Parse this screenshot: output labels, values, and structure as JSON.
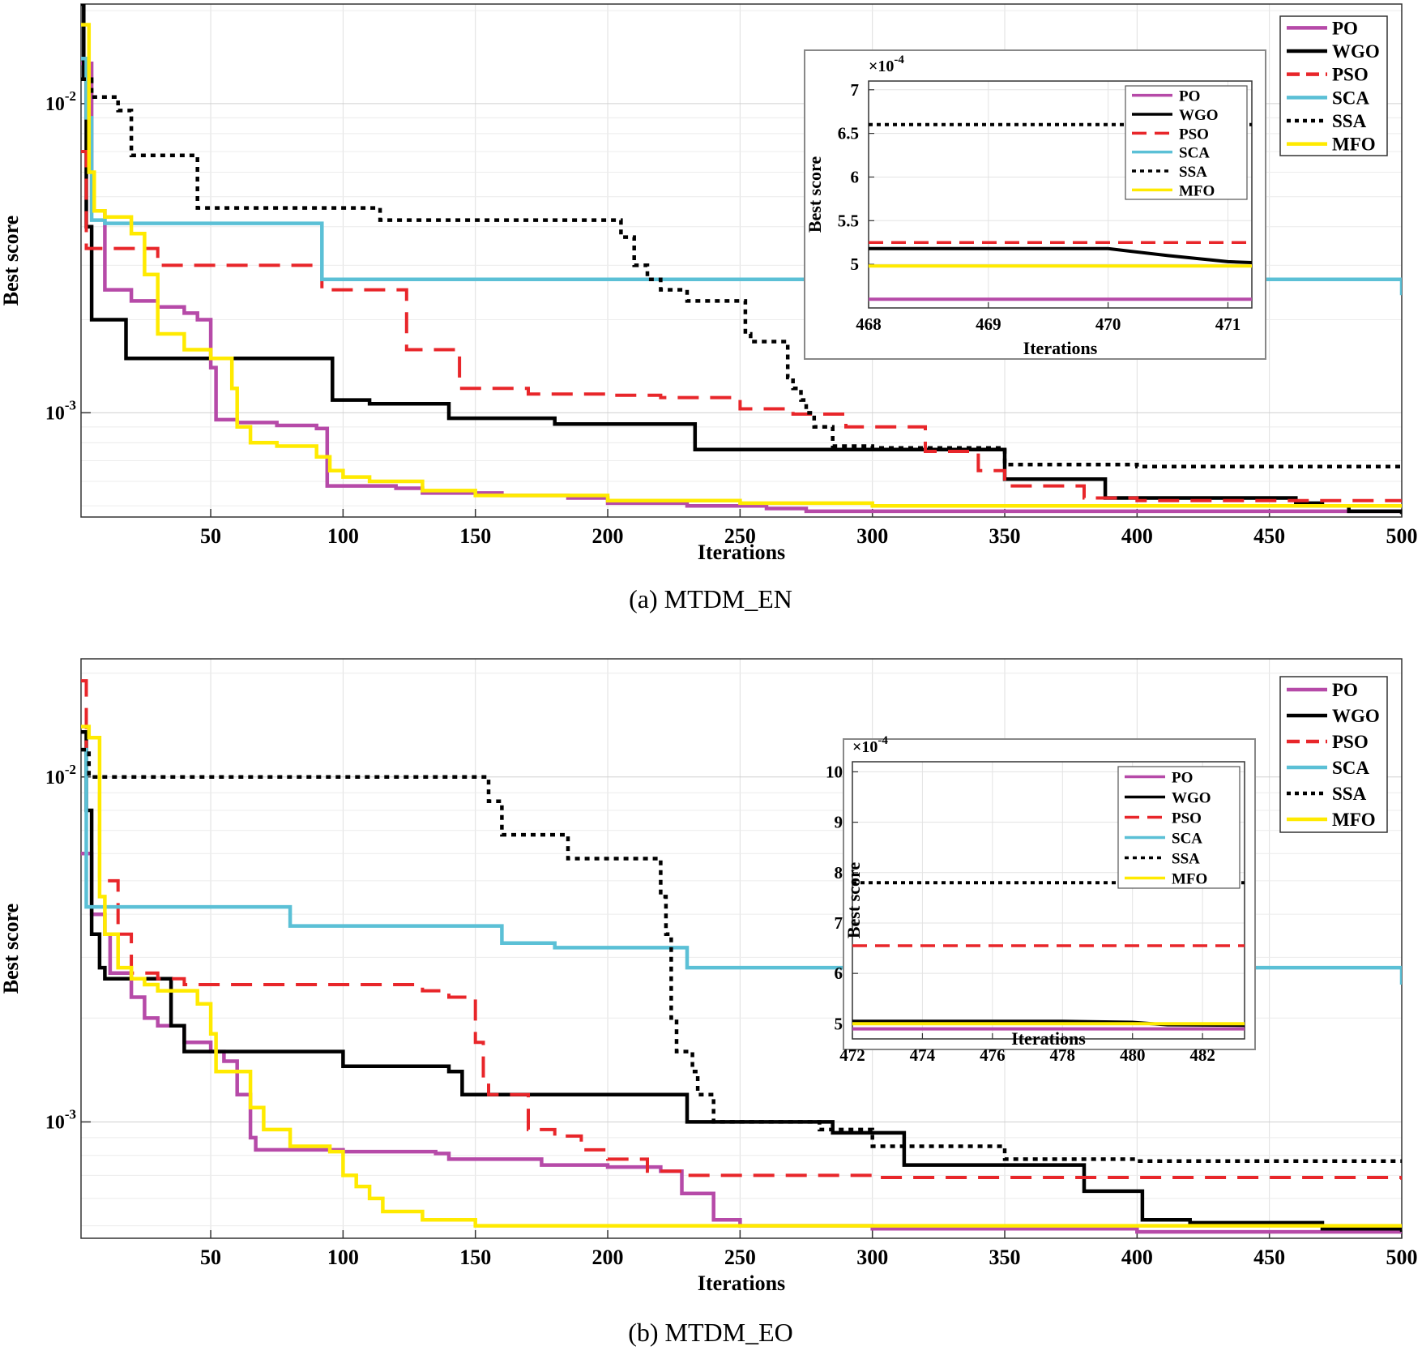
{
  "chart_data": [
    {
      "type": "line",
      "caption": "(a) MTDM_EN",
      "xlabel": "Iterations",
      "ylabel": "Best score",
      "yscale": "log",
      "xlim": [
        1,
        500
      ],
      "ylim": [
        0.00046,
        0.021
      ],
      "xticks": [
        50,
        100,
        150,
        200,
        250,
        300,
        350,
        400,
        450,
        500
      ],
      "yticks": [
        {
          "v": 0.001,
          "base": "10",
          "exp": "-3"
        },
        {
          "v": 0.01,
          "base": "10",
          "exp": "-2"
        }
      ],
      "grid": true,
      "legend_position": "top-right",
      "series": [
        {
          "name": "PO",
          "color": "#b64aa8",
          "style": "solid",
          "x": [
            1,
            5,
            10,
            20,
            30,
            40,
            45,
            50,
            52,
            55,
            60,
            75,
            90,
            94,
            110,
            120,
            130,
            140,
            160,
            185,
            200,
            230,
            260,
            275,
            300,
            350,
            400,
            450,
            500
          ],
          "y": [
            0.0135,
            0.0045,
            0.0025,
            0.0023,
            0.0022,
            0.0021,
            0.002,
            0.0014,
            0.00095,
            0.00095,
            0.00093,
            0.00091,
            0.00089,
            0.00058,
            0.00058,
            0.00057,
            0.00055,
            0.00055,
            0.00054,
            0.00053,
            0.00051,
            0.0005,
            0.00049,
            0.00048,
            0.00048,
            0.00048,
            0.00048,
            0.00048,
            0.00048
          ]
        },
        {
          "name": "WGO",
          "color": "#000000",
          "style": "solid",
          "x": [
            1,
            2,
            3,
            5,
            18,
            92,
            96,
            110,
            140,
            175,
            180,
            232,
            233,
            280,
            320,
            350,
            385,
            388,
            450,
            460,
            470,
            480,
            500
          ],
          "y": [
            0.021,
            0.012,
            0.004,
            0.002,
            0.0015,
            0.0015,
            0.0011,
            0.00107,
            0.00096,
            0.00096,
            0.00092,
            0.00092,
            0.00076,
            0.00076,
            0.00076,
            0.00061,
            0.00061,
            0.00053,
            0.00053,
            0.00051,
            0.0005,
            0.00048,
            0.00047
          ]
        },
        {
          "name": "PSO",
          "color": "#e8262a",
          "style": "dashed",
          "x": [
            1,
            3,
            5,
            30,
            90,
            92,
            122,
            124,
            142,
            144,
            166,
            170,
            200,
            220,
            250,
            270,
            290,
            320,
            340,
            350,
            380,
            400,
            450,
            500
          ],
          "y": [
            0.007,
            0.0034,
            0.0034,
            0.003,
            0.003,
            0.0025,
            0.0025,
            0.0016,
            0.0016,
            0.0012,
            0.0012,
            0.00115,
            0.00114,
            0.00112,
            0.00103,
            0.00099,
            0.0009,
            0.00075,
            0.00065,
            0.00058,
            0.00053,
            0.00052,
            0.00052,
            0.00052
          ]
        },
        {
          "name": "SCA",
          "color": "#5bc0d6",
          "style": "solid",
          "x": [
            1,
            3,
            5,
            10,
            90,
            92,
            200,
            300,
            500
          ],
          "y": [
            0.014,
            0.009,
            0.0042,
            0.0041,
            0.0041,
            0.0027,
            0.0027,
            0.0027,
            0.0024
          ]
        },
        {
          "name": "SSA",
          "color": "#000000",
          "style": "dotted",
          "x": [
            1,
            5,
            15,
            20,
            40,
            45,
            110,
            114,
            180,
            205,
            210,
            215,
            220,
            230,
            252,
            254,
            268,
            270,
            273,
            275,
            278,
            285,
            300,
            350,
            400,
            450,
            500
          ],
          "y": [
            0.012,
            0.0105,
            0.0095,
            0.0068,
            0.0068,
            0.0046,
            0.0046,
            0.0042,
            0.0042,
            0.0037,
            0.003,
            0.0027,
            0.0025,
            0.0023,
            0.0018,
            0.0017,
            0.0013,
            0.0012,
            0.0011,
            0.001,
            0.0009,
            0.00078,
            0.00077,
            0.00068,
            0.00067,
            0.00067,
            0.00066
          ]
        },
        {
          "name": "MFO",
          "color": "#ffea00",
          "style": "solid",
          "x": [
            1,
            4,
            6,
            10,
            20,
            25,
            30,
            40,
            50,
            55,
            58,
            60,
            65,
            75,
            90,
            95,
            100,
            110,
            130,
            150,
            200,
            250,
            300,
            400,
            500
          ],
          "y": [
            0.018,
            0.006,
            0.0045,
            0.0043,
            0.0038,
            0.0028,
            0.0018,
            0.0016,
            0.0015,
            0.0015,
            0.0012,
            0.0009,
            0.0008,
            0.00078,
            0.00072,
            0.00065,
            0.00062,
            0.0006,
            0.00056,
            0.00054,
            0.00052,
            0.00051,
            0.0005,
            0.0005,
            0.0005
          ]
        }
      ],
      "inset": {
        "xlabel": "Iterations",
        "ylabel": "Best score",
        "xlim": [
          468,
          471.2
        ],
        "ylim": [
          4.5,
          7.1
        ],
        "xticks": [
          "468",
          "469",
          "470",
          "471"
        ],
        "yticks": [
          "5",
          "5.5",
          "6",
          "6.5",
          "7"
        ],
        "scale_label": "×10",
        "scale_exp": "-4",
        "series": [
          {
            "name": "PO",
            "x": [
              468,
              471.2
            ],
            "y": [
              4.6,
              4.6
            ]
          },
          {
            "name": "WGO",
            "x": [
              468,
              470,
              470.5,
              471,
              471.2
            ],
            "y": [
              5.18,
              5.18,
              5.1,
              5.03,
              5.02
            ]
          },
          {
            "name": "PSO",
            "x": [
              468,
              471.2
            ],
            "y": [
              5.25,
              5.25
            ]
          },
          {
            "name": "SCA",
            "x": [],
            "y": []
          },
          {
            "name": "SSA",
            "x": [
              468,
              471.2
            ],
            "y": [
              6.6,
              6.6
            ]
          },
          {
            "name": "MFO",
            "x": [
              468,
              471.2
            ],
            "y": [
              4.98,
              4.98
            ]
          }
        ]
      }
    },
    {
      "type": "line",
      "caption": "(b) MTDM_EO",
      "xlabel": "Iterations",
      "ylabel": "Best score",
      "yscale": "log",
      "xlim": [
        1,
        500
      ],
      "ylim": [
        0.00046,
        0.022
      ],
      "xticks": [
        50,
        100,
        150,
        200,
        250,
        300,
        350,
        400,
        450,
        500
      ],
      "yticks": [
        {
          "v": 0.001,
          "base": "10",
          "exp": "-3"
        },
        {
          "v": 0.01,
          "base": "10",
          "exp": "-2"
        }
      ],
      "grid": true,
      "legend_position": "top-right",
      "series": [
        {
          "name": "PO",
          "color": "#b64aa8",
          "style": "solid",
          "x": [
            1,
            5,
            10,
            12,
            20,
            25,
            30,
            40,
            50,
            55,
            60,
            65,
            67,
            100,
            135,
            140,
            175,
            200,
            220,
            225,
            228,
            240,
            250,
            300,
            400,
            500
          ],
          "y": [
            0.006,
            0.004,
            0.0035,
            0.0027,
            0.0023,
            0.002,
            0.0019,
            0.0017,
            0.0016,
            0.0015,
            0.0012,
            0.0009,
            0.00083,
            0.00082,
            0.00081,
            0.00078,
            0.00075,
            0.00074,
            0.00072,
            0.00072,
            0.00062,
            0.00052,
            0.0005,
            0.00049,
            0.00048,
            0.00048
          ]
        },
        {
          "name": "WGO",
          "color": "#000000",
          "style": "solid",
          "x": [
            1,
            3,
            5,
            8,
            10,
            30,
            35,
            40,
            100,
            140,
            145,
            225,
            230,
            280,
            285,
            310,
            312,
            376,
            380,
            400,
            402,
            420,
            470,
            500
          ],
          "y": [
            0.0135,
            0.008,
            0.0035,
            0.0028,
            0.0026,
            0.0026,
            0.0019,
            0.0016,
            0.00145,
            0.0014,
            0.0012,
            0.0012,
            0.001,
            0.001,
            0.00093,
            0.00093,
            0.00075,
            0.00075,
            0.00063,
            0.00063,
            0.00052,
            0.00051,
            0.00049,
            0.00048
          ]
        },
        {
          "name": "PSO",
          "color": "#e8262a",
          "style": "dashed",
          "x": [
            1,
            3,
            8,
            15,
            20,
            30,
            40,
            130,
            140,
            150,
            153,
            155,
            165,
            170,
            180,
            190,
            200,
            215,
            230,
            300,
            400,
            500
          ],
          "y": [
            0.019,
            0.009,
            0.005,
            0.0035,
            0.0027,
            0.0026,
            0.0025,
            0.0024,
            0.0023,
            0.0017,
            0.0013,
            0.0012,
            0.0012,
            0.00095,
            0.00091,
            0.00083,
            0.00078,
            0.00072,
            0.0007,
            0.00069,
            0.00069,
            0.00068
          ]
        },
        {
          "name": "SCA",
          "color": "#5bc0d6",
          "style": "solid",
          "x": [
            1,
            3,
            5,
            75,
            80,
            155,
            160,
            175,
            180,
            225,
            230,
            280,
            500
          ],
          "y": [
            0.012,
            0.0042,
            0.0042,
            0.0042,
            0.0037,
            0.0037,
            0.0033,
            0.0033,
            0.0032,
            0.0032,
            0.0028,
            0.0028,
            0.0025
          ]
        },
        {
          "name": "SSA",
          "color": "#000000",
          "style": "dotted",
          "x": [
            1,
            4,
            10,
            150,
            155,
            160,
            180,
            185,
            215,
            220,
            222,
            224,
            226,
            232,
            234,
            240,
            250,
            280,
            300,
            350,
            400,
            450,
            500
          ],
          "y": [
            0.012,
            0.01,
            0.01,
            0.01,
            0.0085,
            0.0068,
            0.0068,
            0.0058,
            0.0058,
            0.0045,
            0.0035,
            0.002,
            0.0016,
            0.0014,
            0.0012,
            0.001,
            0.001,
            0.00095,
            0.00085,
            0.00078,
            0.00077,
            0.00077,
            0.00077
          ]
        },
        {
          "name": "MFO",
          "color": "#ffea00",
          "style": "solid",
          "x": [
            1,
            4,
            8,
            10,
            15,
            20,
            25,
            30,
            45,
            50,
            52,
            60,
            65,
            70,
            80,
            95,
            100,
            105,
            110,
            115,
            130,
            150,
            200,
            300,
            500
          ],
          "y": [
            0.014,
            0.013,
            0.0045,
            0.0035,
            0.0028,
            0.0026,
            0.0025,
            0.0024,
            0.0022,
            0.0018,
            0.0014,
            0.0014,
            0.0011,
            0.00095,
            0.00085,
            0.00082,
            0.0007,
            0.00065,
            0.0006,
            0.00055,
            0.00052,
            0.0005,
            0.0005,
            0.0005,
            0.0005
          ]
        }
      ],
      "inset": {
        "xlabel": "Iterations",
        "ylabel": "Best score",
        "xlim": [
          472,
          483.2
        ],
        "ylim": [
          4.7,
          10.2
        ],
        "xticks": [
          "472",
          "474",
          "476",
          "478",
          "480",
          "482"
        ],
        "yticks": [
          "5",
          "6",
          "7",
          "8",
          "9",
          "10"
        ],
        "scale_label": "×10",
        "scale_exp": "-4",
        "series": [
          {
            "name": "PO",
            "x": [
              472,
              483.2
            ],
            "y": [
              4.9,
              4.9
            ]
          },
          {
            "name": "WGO",
            "x": [
              472,
              478,
              480,
              481,
              483.2
            ],
            "y": [
              5.05,
              5.05,
              5.03,
              4.98,
              4.97
            ]
          },
          {
            "name": "PSO",
            "x": [
              472,
              483.2
            ],
            "y": [
              6.55,
              6.55
            ]
          },
          {
            "name": "SCA",
            "x": [],
            "y": []
          },
          {
            "name": "SSA",
            "x": [
              472,
              483.2
            ],
            "y": [
              7.8,
              7.8
            ]
          },
          {
            "name": "MFO",
            "x": [
              472,
              483.2
            ],
            "y": [
              5.0,
              5.0
            ]
          }
        ]
      }
    }
  ]
}
